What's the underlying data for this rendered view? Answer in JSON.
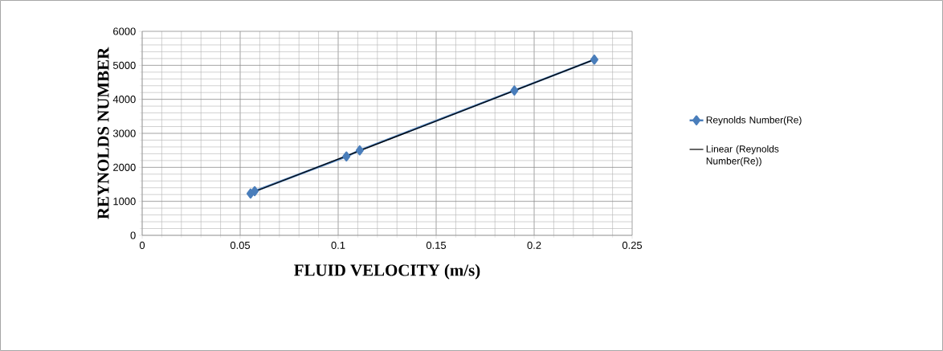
{
  "chart_data": {
    "type": "line",
    "xlabel": "FLUID VELOCITY (m/s)",
    "ylabel": "REYNOLDS NUMBER",
    "xlim": [
      0,
      0.25
    ],
    "xticks": [
      0,
      0.05,
      0.1,
      0.15,
      0.2,
      0.25
    ],
    "ylim": [
      0,
      6000
    ],
    "yticks": [
      0,
      1000,
      2000,
      3000,
      4000,
      5000,
      6000
    ],
    "grid": true,
    "legend": "right",
    "series": [
      {
        "name": "Reynolds Number(Re)",
        "color": "#4a7ebb",
        "marker": "diamond",
        "x": [
          0.0553,
          0.0574,
          0.1042,
          0.111,
          0.1899,
          0.2307
        ],
        "values": [
          1230,
          1300,
          2320,
          2500,
          4260,
          5170
        ]
      },
      {
        "name": "Linear (Reynolds Number(Re))",
        "color": "#000000",
        "marker": "none",
        "x": [
          0.0553,
          0.2307
        ],
        "values": [
          1240,
          5170
        ]
      }
    ]
  }
}
